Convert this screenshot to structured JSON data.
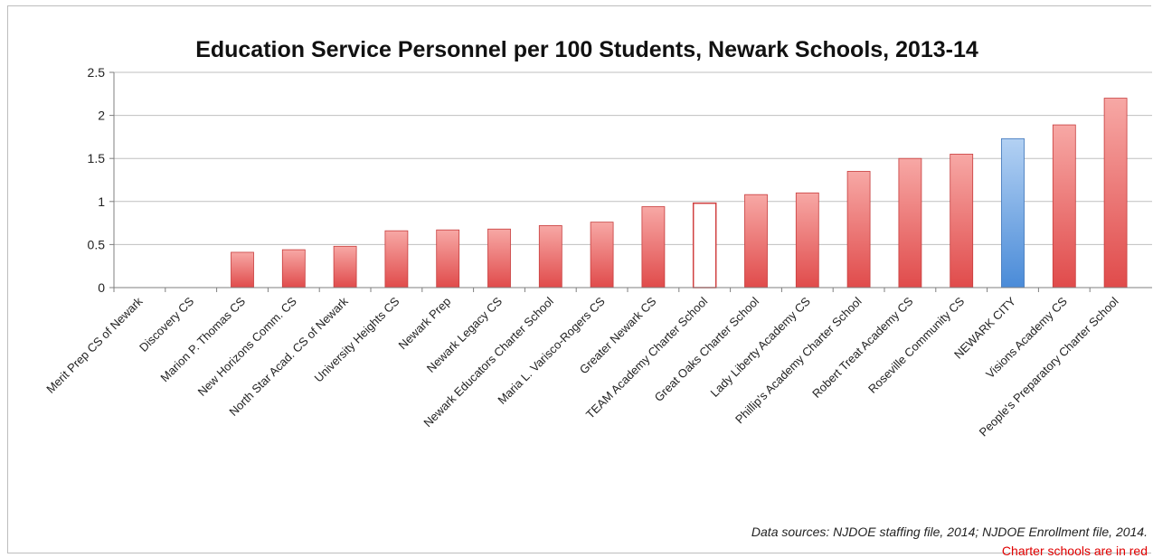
{
  "chart_data": {
    "type": "bar",
    "title": "Education Service Personnel per 100 Students, Newark Schools, 2013-14",
    "xlabel": "",
    "ylabel": "",
    "ylim": [
      0,
      2.5
    ],
    "yticks": [
      "0",
      "0.5",
      "1",
      "1.5",
      "2",
      "2.5"
    ],
    "grid": true,
    "categories": [
      "Merit Prep CS of Newark",
      "Discovery CS",
      "Marion P. Thomas CS",
      "New Horizons Comm. CS",
      "North Star Acad. CS of Newark",
      "University Heights CS",
      "Newark Prep",
      "Newark Legacy CS",
      "Newark Educators Charter School",
      "Maria L. Varisco-Rogers CS",
      "Greater Newark CS",
      "TEAM Academy Charter School",
      "Great Oaks Charter School",
      "Lady Liberty Academy CS",
      "Phillip's Academy Charter School",
      "Robert Treat Academy CS",
      "Roseville Community CS",
      "NEWARK CITY",
      "Visions Academy CS",
      "People's Preparatory Charter School"
    ],
    "values": [
      0,
      0,
      0.41,
      0.44,
      0.48,
      0.66,
      0.67,
      0.68,
      0.72,
      0.76,
      0.94,
      0.98,
      1.08,
      1.1,
      1.35,
      1.5,
      1.55,
      1.73,
      1.89,
      2.2
    ],
    "styles": [
      "red",
      "red",
      "red",
      "red",
      "red",
      "red",
      "red",
      "red",
      "red",
      "red",
      "red",
      "outline",
      "red",
      "red",
      "red",
      "red",
      "red",
      "blue",
      "red",
      "red"
    ],
    "colors": {
      "red": "#e04b4b",
      "red_light": "#f7a8a5",
      "blue": "#4a8bd8",
      "blue_light": "#b3d1f3",
      "outline_stroke": "#d04040",
      "grid": "#bfbfbf"
    },
    "source": "Data sources: NJDOE staffing file, 2014; NJDOE Enrollment file, 2014.",
    "note": "Charter schools are in red",
    "note_color": "#e00000"
  }
}
